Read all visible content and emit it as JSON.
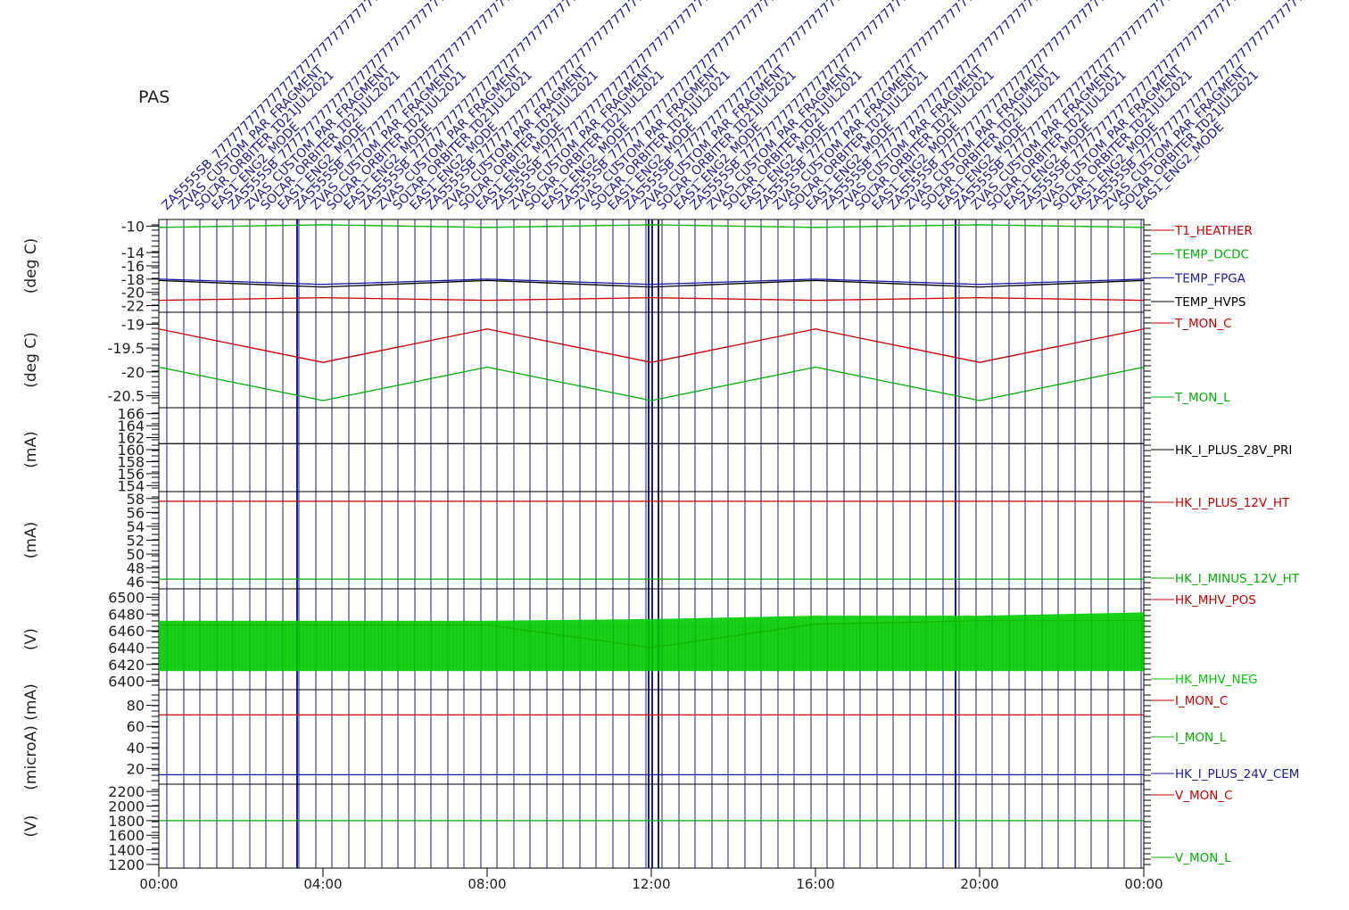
{
  "title": "PAS",
  "colors": {
    "black": "#000000",
    "red": "#cc0000",
    "green": "#00b000",
    "blue": "#1a1aa0",
    "bright_green": "#00cc00"
  },
  "x_axis": {
    "ticks": [
      "00:00",
      "04:00",
      "08:00",
      "12:00",
      "16:00",
      "20:00",
      "00:00"
    ]
  },
  "event_labels": [
    "ZA5555SB_777777777777777777777777777777777777777777 EAS2222222222222222222222222222SOLAR_ORBITER ENG2_MODE",
    "ZVAS_CUSTOM_PAR_FRAGMENT",
    "SOLAR_ORBITER 1021JUL2021",
    "EAS1_ENG2_MODE"
  ],
  "chart_data": [
    {
      "type": "line",
      "ylabel": "(deg C)",
      "yticks": [
        -10,
        -14,
        -16,
        -18,
        -20,
        -22
      ],
      "ylim": [
        -23,
        -9
      ],
      "series": [
        {
          "name": "T1_HEATHER",
          "color": "#cc0000",
          "values": [
            -21.2,
            -20.8,
            -21.2,
            -20.8,
            -21.2,
            -20.8,
            -21.2
          ]
        },
        {
          "name": "TEMP_DCDC",
          "color": "#00b000",
          "values": [
            -10.2,
            -9.8,
            -10.2,
            -9.8,
            -10.2,
            -9.8,
            -10.2
          ]
        },
        {
          "name": "TEMP_FPGA",
          "color": "#1a1aa0",
          "values": [
            -18.0,
            -18.8,
            -18.0,
            -18.8,
            -18.0,
            -18.8,
            -18.0
          ]
        },
        {
          "name": "TEMP_HVPS",
          "color": "#000000",
          "values": [
            -18.2,
            -19.2,
            -18.2,
            -19.2,
            -18.2,
            -19.2,
            -18.2
          ]
        }
      ]
    },
    {
      "type": "line",
      "ylabel": "(deg C)",
      "yticks": [
        -19.0,
        -19.5,
        -20.0,
        -20.5
      ],
      "ylim": [
        -20.75,
        -18.75
      ],
      "series": [
        {
          "name": "T_MON_C",
          "color": "#cc0000",
          "values": [
            -19.1,
            -19.8,
            -19.1,
            -19.8,
            -19.1,
            -19.8,
            -19.1
          ]
        },
        {
          "name": "T_MON_L",
          "color": "#00b000",
          "values": [
            -19.9,
            -20.6,
            -19.9,
            -20.6,
            -19.9,
            -20.6,
            -19.9
          ]
        }
      ]
    },
    {
      "type": "line",
      "ylabel": "(mA)",
      "yticks": [
        166,
        164,
        162,
        160,
        158,
        156,
        154
      ],
      "ylim": [
        153,
        167
      ],
      "series": [
        {
          "name": "HK_I_PLUS_28V_PRI",
          "color": "#000000",
          "values": [
            161,
            161,
            161,
            161,
            161,
            161,
            161
          ]
        }
      ]
    },
    {
      "type": "line",
      "ylabel": "(mA)",
      "yticks": [
        58,
        56,
        54,
        52,
        50,
        48,
        46
      ],
      "ylim": [
        45,
        59
      ],
      "series": [
        {
          "name": "HK_I_PLUS_12V_HT",
          "color": "#cc0000",
          "values": [
            57.6,
            57.6,
            57.6,
            57.6,
            57.6,
            57.6,
            57.6
          ]
        },
        {
          "name": "HK_I_MINUS_12V_HT",
          "color": "#00b000",
          "values": [
            46.4,
            46.4,
            46.4,
            46.4,
            46.4,
            46.4,
            46.4
          ]
        }
      ]
    },
    {
      "type": "area",
      "ylabel": "(V)",
      "yticks": [
        6500,
        6480,
        6460,
        6440,
        6420,
        6400
      ],
      "ylim": [
        6390,
        6510
      ],
      "series": [
        {
          "name": "HK_MHV_POS",
          "color": "#cc0000",
          "values": [
            6467,
            6467,
            6467,
            6440,
            6468,
            6472,
            6472
          ]
        },
        {
          "name": "HK_MHV_NEG",
          "color": "#00cc00",
          "low": [
            6412,
            6412,
            6412,
            6412,
            6412,
            6412,
            6412
          ],
          "high": [
            6472,
            6472,
            6472,
            6474,
            6478,
            6478,
            6482
          ]
        }
      ]
    },
    {
      "type": "line",
      "ylabel": "(microA) (mA)",
      "yticks": [
        80,
        60,
        40,
        20
      ],
      "ylim": [
        5,
        95
      ],
      "series": [
        {
          "name": "I_MON_C",
          "color": "#cc0000",
          "values": [
            71,
            71,
            71,
            71,
            71,
            71,
            71
          ]
        },
        {
          "name": "I_MON_L",
          "color": "#00b000",
          "values": []
        },
        {
          "name": "HK_I_PLUS_24V_CEM",
          "color": "#1a1aa0",
          "values": [
            14,
            14,
            14,
            14,
            14,
            14,
            14
          ]
        }
      ]
    },
    {
      "type": "line",
      "ylabel": "(V)",
      "yticks": [
        2200,
        2000,
        1800,
        1600,
        1400,
        1200
      ],
      "ylim": [
        1150,
        2300
      ],
      "series": [
        {
          "name": "V_MON_C",
          "color": "#cc0000",
          "values": []
        },
        {
          "name": "V_MON_L",
          "color": "#00b000",
          "values": [
            1800,
            1800,
            1800,
            1800,
            1800,
            1800,
            1800
          ]
        }
      ]
    }
  ]
}
